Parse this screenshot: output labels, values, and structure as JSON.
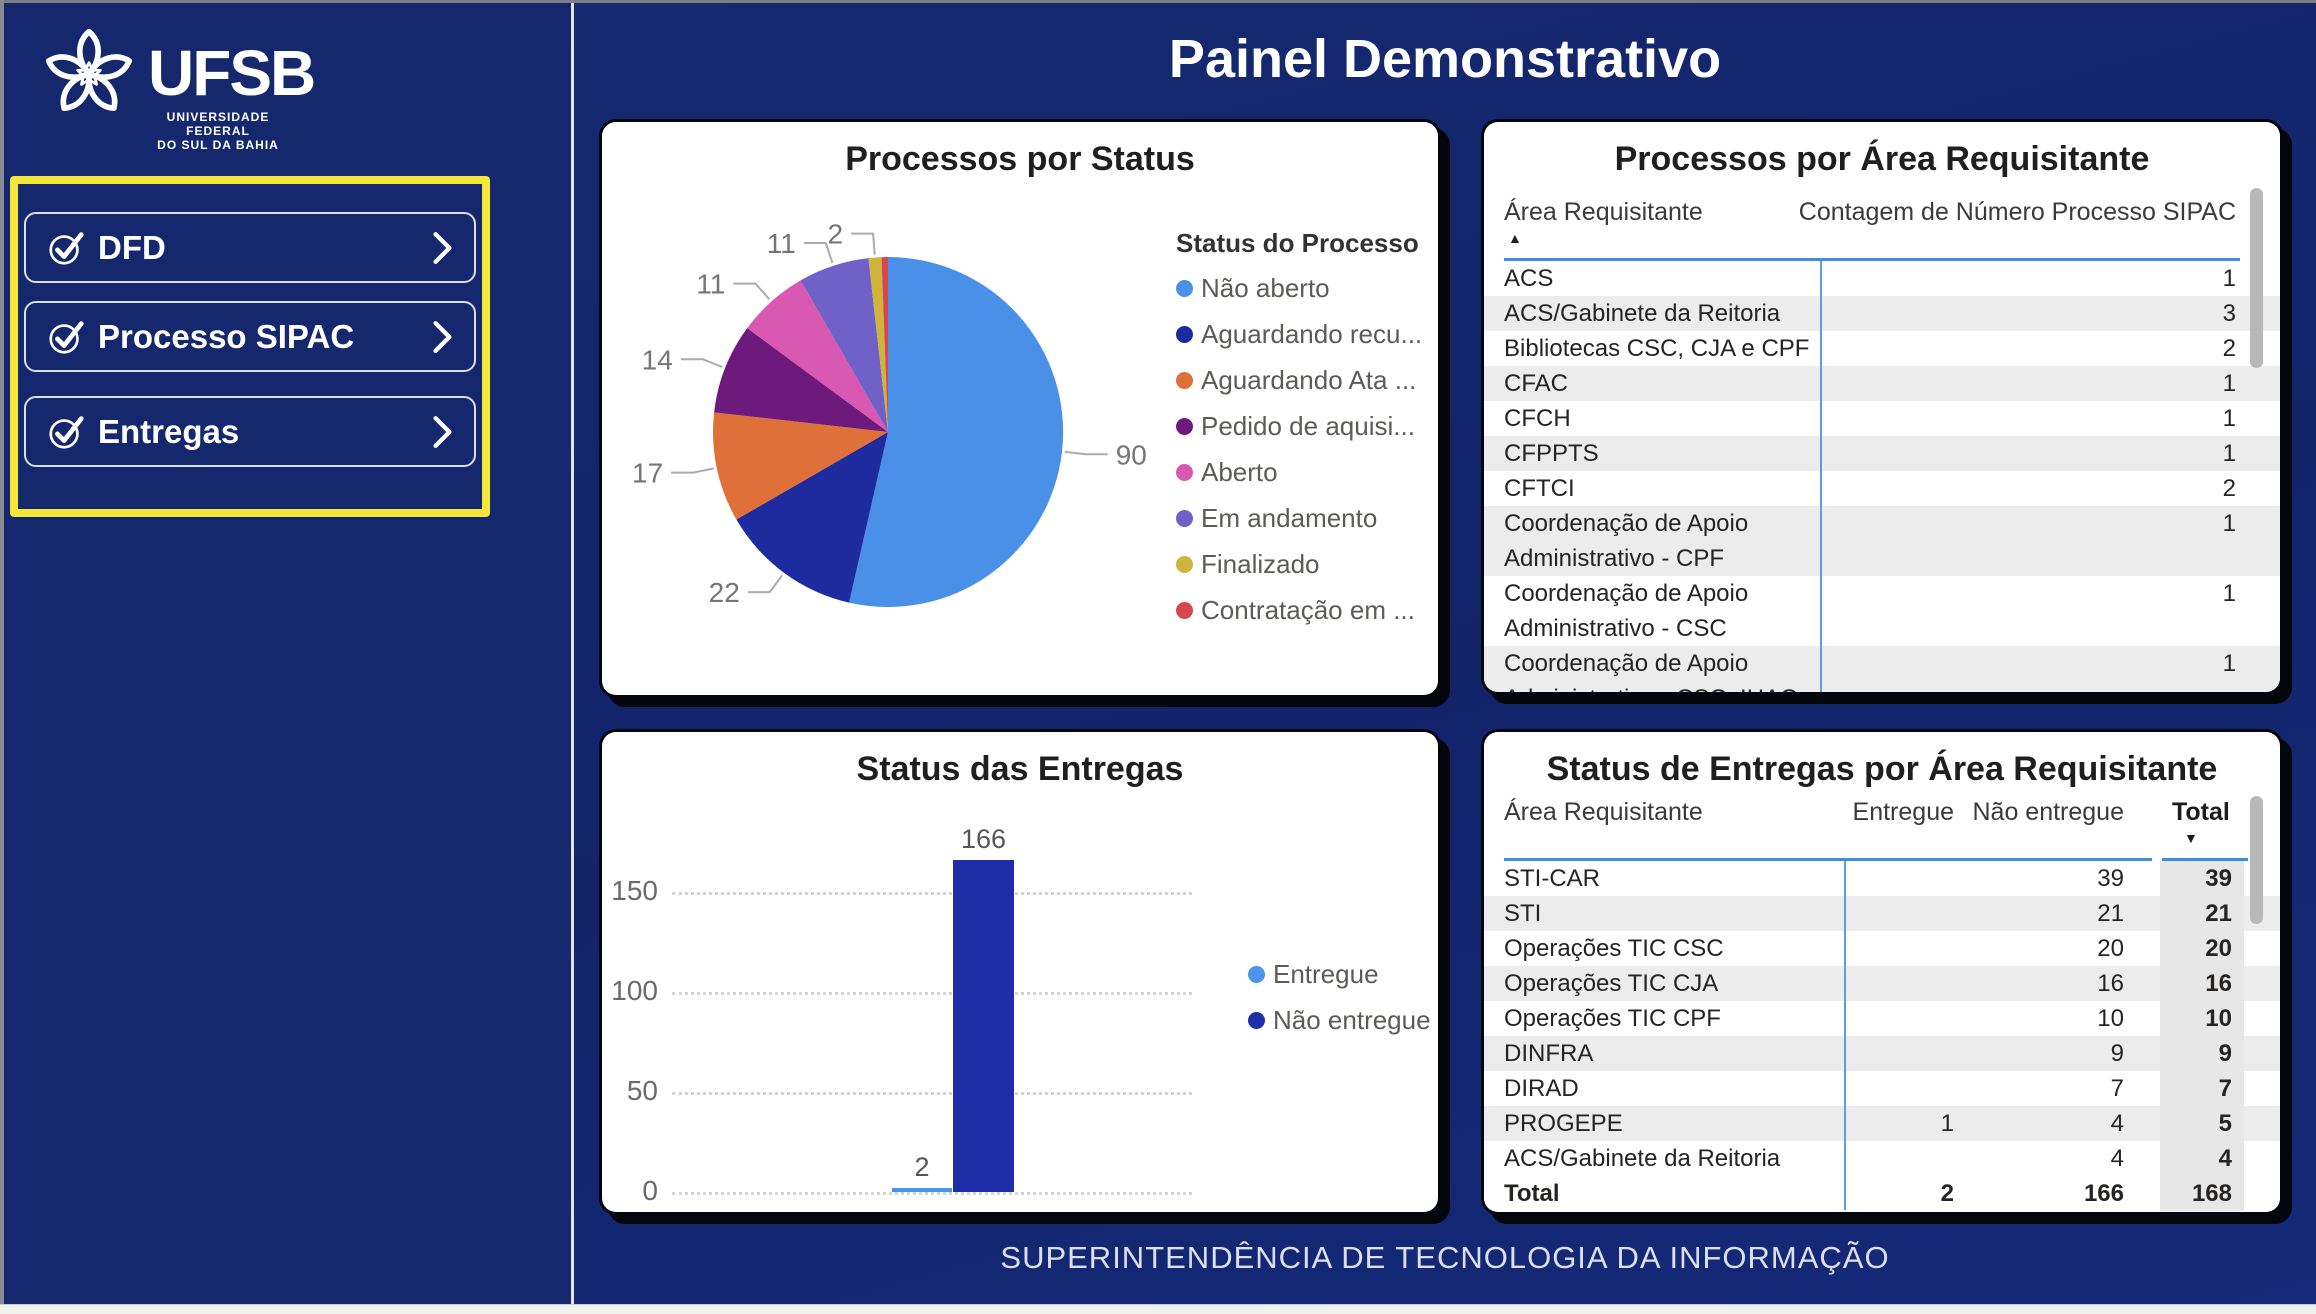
{
  "window": {
    "title": "Painel Demonstrativo",
    "footer": "SUPERINTENDÊNCIA DE TECNOLOGIA DA INFORMAÇÃO"
  },
  "sidebar": {
    "logo": {
      "acronym": "UFSB",
      "subtitle_line1": "UNIVERSIDADE FEDERAL",
      "subtitle_line2": "DO SUL DA BAHIA"
    },
    "buttons": [
      {
        "label": "DFD"
      },
      {
        "label": "Processo SIPAC"
      },
      {
        "label": "Entregas"
      }
    ],
    "highlight_color": "#F4E73C"
  },
  "colors": {
    "table_accent_line": "#3F8DDB",
    "card_background": "#FFFFFF",
    "page_background": "#13246B"
  },
  "chart_data": [
    {
      "type": "pie",
      "title": "Processos por Status",
      "legend_title": "Status do Processo",
      "legend_position": "right",
      "series": [
        {
          "label": "Não aberto",
          "value": 90,
          "color": "#4A90E8",
          "data_label": "90"
        },
        {
          "label": "Aguardando recu...",
          "value": 22,
          "color": "#1E2B9F",
          "data_label": "22"
        },
        {
          "label": "Aguardando Ata ...",
          "value": 17,
          "color": "#E0703A",
          "data_label": "17"
        },
        {
          "label": "Pedido de aquisi...",
          "value": 14,
          "color": "#6E1A7D",
          "data_label": "14"
        },
        {
          "label": "Aberto",
          "value": 11,
          "color": "#D958B2",
          "data_label": "11"
        },
        {
          "label": "Em andamento",
          "value": 11,
          "color": "#7061C8",
          "data_label": "11"
        },
        {
          "label": "Finalizado",
          "value": 2,
          "color": "#CEB33C",
          "data_label": "2"
        },
        {
          "label": "Contratação em ...",
          "value": 1,
          "color": "#D64550",
          "data_label": ""
        }
      ]
    },
    {
      "type": "bar",
      "title": "Status das Entregas",
      "categories": [
        ""
      ],
      "series": [
        {
          "name": "Entregue",
          "values": [
            2
          ],
          "color": "#4B96EC"
        },
        {
          "name": "Não entregue",
          "values": [
            166
          ],
          "color": "#1E2EA8"
        }
      ],
      "ylim": [
        0,
        175
      ],
      "yticks": [
        0,
        50,
        100,
        150
      ],
      "grid": "dotted",
      "legend_position": "right"
    },
    {
      "type": "table",
      "title": "Processos por Área Requisitante",
      "columns": [
        "Área Requisitante",
        "Contagem de Número Processo SIPAC"
      ],
      "sort": {
        "column": "Área Requisitante",
        "direction": "asc",
        "arrow": "▲"
      },
      "rows": [
        [
          "ACS",
          1
        ],
        [
          "ACS/Gabinete da Reitoria",
          3
        ],
        [
          "Bibliotecas CSC, CJA e CPF",
          2
        ],
        [
          "CFAC",
          1
        ],
        [
          "CFCH",
          1
        ],
        [
          "CFPPTS",
          1
        ],
        [
          "CFTCI",
          2
        ],
        [
          "Coordenação de Apoio Administrativo - CPF",
          1
        ],
        [
          "Coordenação de Apoio Administrativo - CSC",
          1
        ],
        [
          "Coordenação de Apoio Administrativo - CSC, IHAC",
          1
        ]
      ]
    },
    {
      "type": "table",
      "title": "Status de Entregas por Área Requisitante",
      "columns": [
        "Área Requisitante",
        "Entregue",
        "Não entregue",
        "Total"
      ],
      "sort": {
        "column": "Total",
        "direction": "desc",
        "arrow": "▼"
      },
      "rows": [
        [
          "STI-CAR",
          null,
          39,
          39
        ],
        [
          "STI",
          null,
          21,
          21
        ],
        [
          "Operações TIC CSC",
          null,
          20,
          20
        ],
        [
          "Operações TIC CJA",
          null,
          16,
          16
        ],
        [
          "Operações TIC CPF",
          null,
          10,
          10
        ],
        [
          "DINFRA",
          null,
          9,
          9
        ],
        [
          "DIRAD",
          null,
          7,
          7
        ],
        [
          "PROGEPE",
          1,
          4,
          5
        ],
        [
          "ACS/Gabinete da Reitoria",
          null,
          4,
          4
        ]
      ],
      "total_row": [
        "Total",
        2,
        166,
        168
      ]
    }
  ]
}
